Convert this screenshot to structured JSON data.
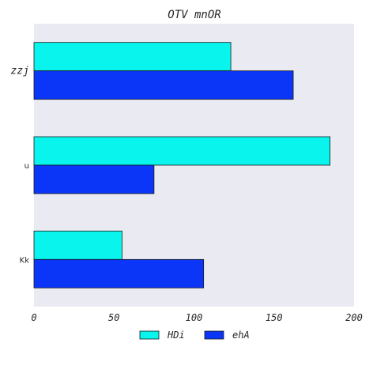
{
  "chart_data": {
    "type": "bar",
    "orientation": "horizontal",
    "title": "OTV mnOR",
    "xlabel": "",
    "ylabel": "",
    "categories": [
      "zzj",
      "u",
      "Kk"
    ],
    "series": [
      {
        "name": "HDi",
        "color": "#08f4ec",
        "values": [
          123,
          185,
          55
        ]
      },
      {
        "name": "ehA",
        "color": "#0b36f7",
        "values": [
          162,
          75,
          106
        ]
      }
    ],
    "xlim": [
      0,
      200
    ],
    "xticks": [
      "0",
      "50",
      "100",
      "150",
      "200"
    ],
    "grid": false,
    "background": "#eaeaf2",
    "legend": "bottom-center"
  }
}
